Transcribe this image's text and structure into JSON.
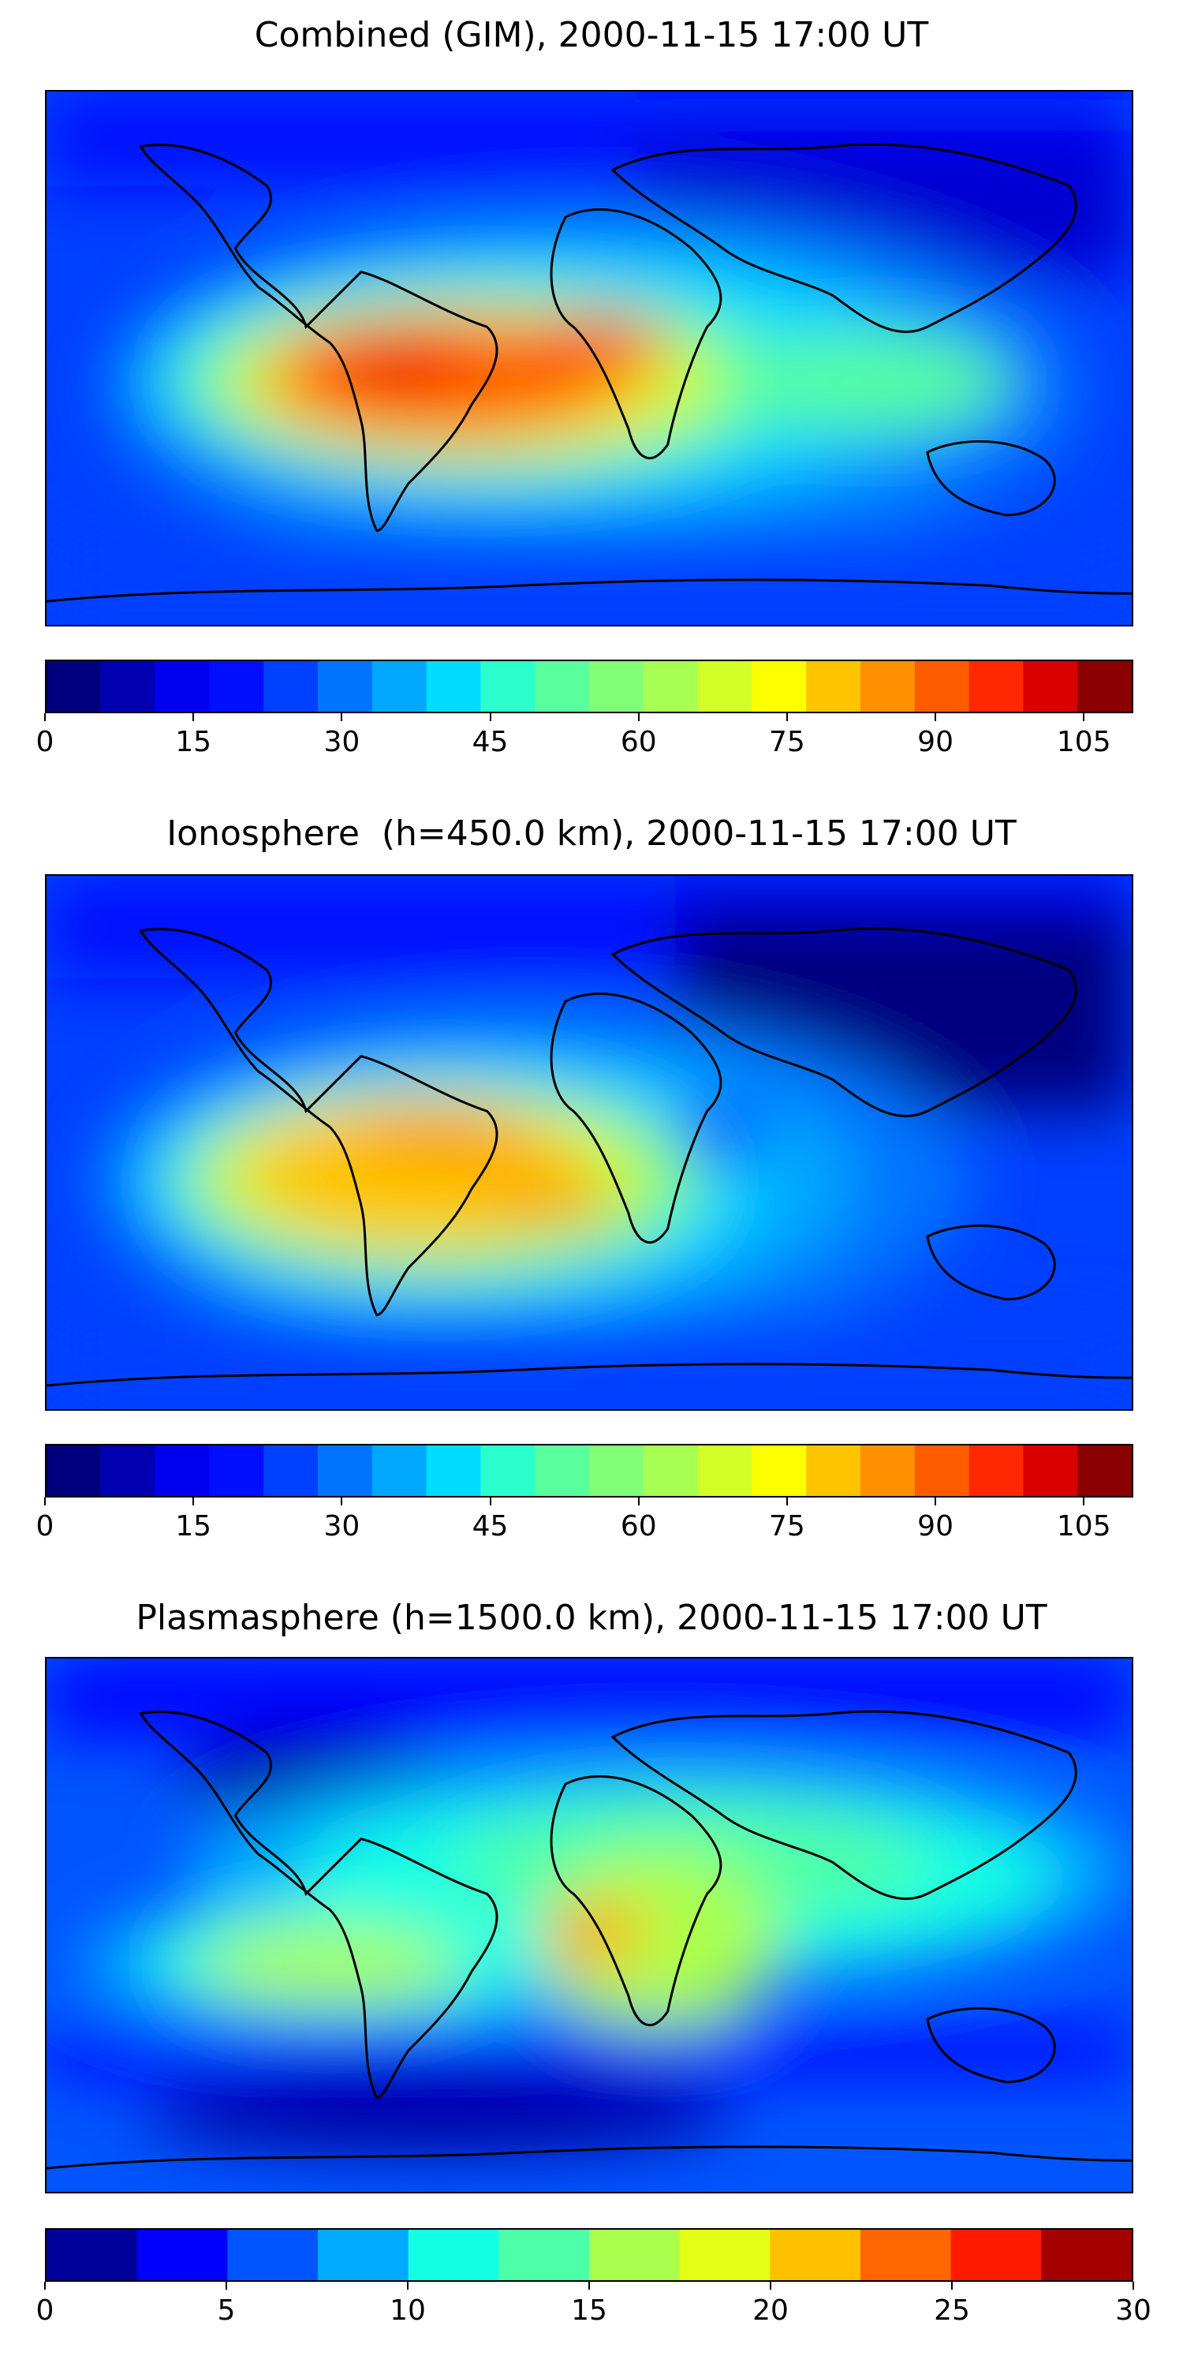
{
  "panels": [
    {
      "title": "Combined (GIM), 2000-11-15 17:00 UT",
      "colorbar": {
        "min": 0,
        "max": 110,
        "step": 5,
        "tick_labels": [
          "0",
          "15",
          "30",
          "45",
          "60",
          "75",
          "90",
          "105"
        ],
        "tick_values": [
          0,
          15,
          30,
          45,
          60,
          75,
          90,
          105
        ],
        "colors": [
          "#00007f",
          "#0000b2",
          "#0000f1",
          "#0010ff",
          "#0040ff",
          "#0074ff",
          "#00a8ff",
          "#00dcfe",
          "#2affcd",
          "#59ff9d",
          "#80ff77",
          "#a6ff51",
          "#d1ff26",
          "#fdff00",
          "#ffc400",
          "#ff9000",
          "#ff5c00",
          "#ff2800",
          "#db0000",
          "#8b0000"
        ]
      }
    },
    {
      "title": "Ionosphere  (h=450.0 km), 2000-11-15 17:00 UT",
      "colorbar": {
        "min": 0,
        "max": 110,
        "step": 5,
        "tick_labels": [
          "0",
          "15",
          "30",
          "45",
          "60",
          "75",
          "90",
          "105"
        ],
        "tick_values": [
          0,
          15,
          30,
          45,
          60,
          75,
          90,
          105
        ],
        "colors": [
          "#00007f",
          "#0000b2",
          "#0000f1",
          "#0010ff",
          "#0040ff",
          "#0074ff",
          "#00a8ff",
          "#00dcfe",
          "#2affcd",
          "#59ff9d",
          "#80ff77",
          "#a6ff51",
          "#d1ff26",
          "#fdff00",
          "#ffc400",
          "#ff9000",
          "#ff5c00",
          "#ff2800",
          "#db0000",
          "#8b0000"
        ]
      }
    },
    {
      "title": "Plasmasphere (h=1500.0 km), 2000-11-15 17:00 UT",
      "colorbar": {
        "min": 0,
        "max": 30,
        "step": 2.5,
        "tick_labels": [
          "0",
          "5",
          "10",
          "15",
          "20",
          "25",
          "30"
        ],
        "tick_values": [
          0,
          5,
          10,
          15,
          20,
          25,
          30
        ],
        "colors": [
          "#00009b",
          "#0000ff",
          "#0055ff",
          "#00aaff",
          "#13ffe3",
          "#4dffa9",
          "#a9ff4d",
          "#e3ff13",
          "#ffc000",
          "#ff6600",
          "#ff1a00",
          "#a50000"
        ]
      }
    }
  ]
}
